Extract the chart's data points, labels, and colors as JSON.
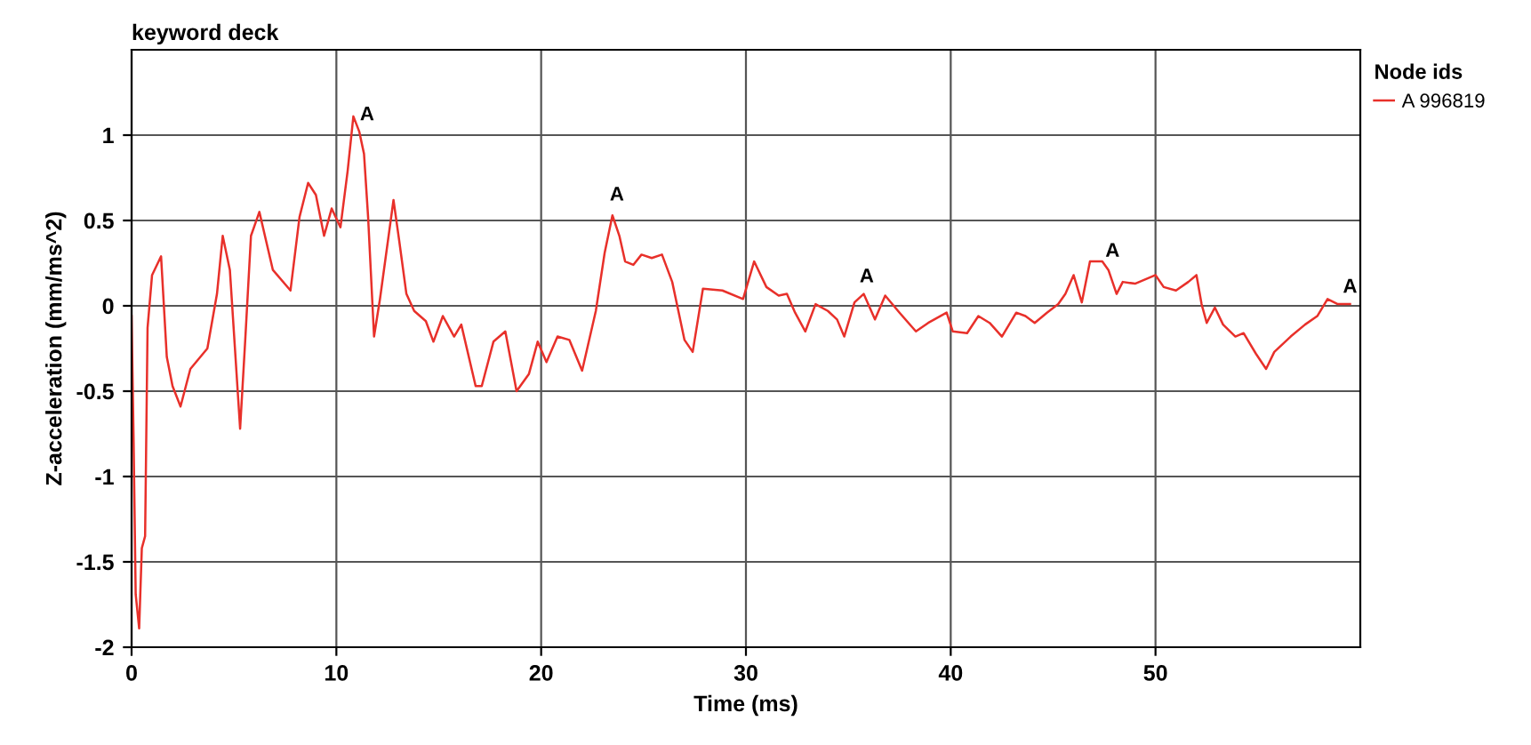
{
  "chart_data": {
    "type": "line",
    "title": "keyword deck",
    "xlabel": "Time (ms)",
    "ylabel": "Z-acceleration (mm/ms^2)",
    "legend_title": "Node ids",
    "legend": "top right",
    "grid": true,
    "xlim": [
      0,
      60
    ],
    "xticks": [
      0,
      10,
      20,
      30,
      40,
      50
    ],
    "ylim": [
      -2,
      1.5
    ],
    "yticks": [
      -2,
      -1.5,
      -1,
      -0.5,
      0,
      0.5,
      1
    ],
    "series": [
      {
        "name": "A 996819",
        "color": "#e8302a",
        "x": [
          0,
          0.1,
          0.2,
          0.37,
          0.5,
          0.66,
          0.78,
          1.0,
          1.44,
          1.72,
          2.0,
          2.39,
          2.87,
          3.7,
          4.17,
          4.45,
          4.8,
          5.3,
          5.55,
          5.83,
          6.24,
          6.9,
          7.76,
          8.2,
          8.62,
          9.0,
          9.4,
          9.77,
          10.2,
          10.55,
          10.83,
          11.12,
          11.35,
          11.55,
          11.84,
          12.13,
          12.79,
          13.07,
          13.42,
          13.8,
          14.37,
          14.74,
          15.2,
          15.75,
          16.1,
          16.8,
          17.1,
          17.67,
          18.25,
          18.8,
          19.4,
          19.83,
          20.26,
          20.8,
          21.38,
          22.0,
          22.67,
          23.1,
          23.48,
          23.82,
          24.1,
          24.5,
          24.9,
          25.4,
          25.9,
          26.4,
          27.0,
          27.4,
          27.9,
          28.85,
          29.86,
          30.4,
          31.0,
          31.6,
          32.0,
          32.4,
          32.9,
          33.4,
          34.0,
          34.45,
          34.8,
          35.3,
          35.75,
          36.3,
          36.8,
          37.5,
          38.3,
          38.9,
          39.8,
          40.1,
          40.8,
          41.35,
          41.9,
          42.5,
          43.2,
          43.65,
          44.1,
          44.7,
          45.25,
          45.6,
          46.0,
          46.4,
          46.8,
          47.4,
          47.7,
          48.1,
          48.4,
          49.0,
          50.0,
          50.4,
          51.0,
          51.6,
          52.0,
          52.25,
          52.5,
          52.9,
          53.3,
          53.9,
          54.3,
          54.9,
          55.4,
          55.8,
          56.6,
          57.3,
          57.9,
          58.4,
          58.9,
          59.5
        ],
        "values": [
          -0.06,
          -0.8,
          -1.69,
          -1.89,
          -1.42,
          -1.35,
          -0.13,
          0.18,
          0.29,
          -0.3,
          -0.47,
          -0.59,
          -0.37,
          -0.25,
          0.07,
          0.41,
          0.21,
          -0.72,
          -0.2,
          0.41,
          0.55,
          0.21,
          0.09,
          0.52,
          0.72,
          0.65,
          0.41,
          0.57,
          0.46,
          0.79,
          1.11,
          1.02,
          0.89,
          0.52,
          -0.18,
          0.04,
          0.62,
          0.38,
          0.07,
          -0.03,
          -0.09,
          -0.21,
          -0.06,
          -0.18,
          -0.11,
          -0.47,
          -0.47,
          -0.21,
          -0.15,
          -0.5,
          -0.4,
          -0.21,
          -0.33,
          -0.18,
          -0.2,
          -0.38,
          -0.03,
          0.31,
          0.53,
          0.41,
          0.26,
          0.24,
          0.3,
          0.28,
          0.3,
          0.14,
          -0.2,
          -0.27,
          0.1,
          0.09,
          0.04,
          0.26,
          0.11,
          0.06,
          0.07,
          -0.04,
          -0.15,
          0.01,
          -0.03,
          -0.08,
          -0.18,
          0.02,
          0.07,
          -0.08,
          0.06,
          -0.04,
          -0.15,
          -0.1,
          -0.04,
          -0.15,
          -0.16,
          -0.06,
          -0.1,
          -0.18,
          -0.04,
          -0.06,
          -0.1,
          -0.04,
          0.01,
          0.07,
          0.18,
          0.02,
          0.26,
          0.26,
          0.21,
          0.07,
          0.14,
          0.13,
          0.18,
          0.11,
          0.09,
          0.14,
          0.18,
          0.01,
          -0.1,
          -0.01,
          -0.11,
          -0.18,
          -0.16,
          -0.28,
          -0.37,
          -0.27,
          -0.18,
          -0.11,
          -0.06,
          0.04,
          0.01,
          0.01
        ]
      }
    ],
    "annotations": [
      {
        "text": "A",
        "x": 11.5,
        "y": 1.02
      },
      {
        "text": "A",
        "x": 23.7,
        "y": 0.55
      },
      {
        "text": "A",
        "x": 35.9,
        "y": 0.07
      },
      {
        "text": "A",
        "x": 47.9,
        "y": 0.22
      },
      {
        "text": "A",
        "x": 59.5,
        "y": 0.01
      }
    ]
  }
}
